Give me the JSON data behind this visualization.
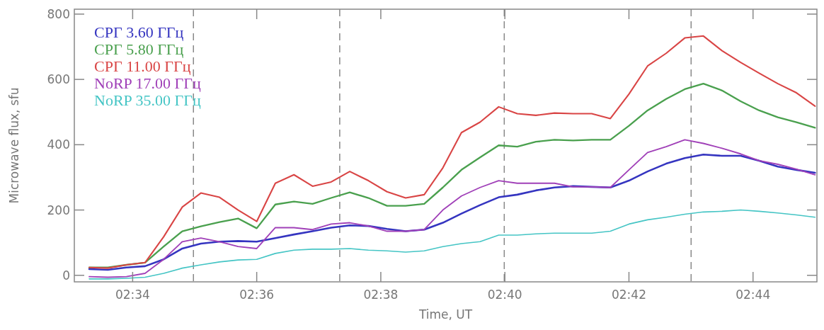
{
  "chart_data": {
    "type": "line",
    "xlabel": "Time, UT",
    "ylabel": "Microwave flux, sfu",
    "xlim": [
      2.551,
      2.7505
    ],
    "ylim": [
      -20,
      815
    ],
    "xticks": [
      {
        "value": 2.566667,
        "label": "02:34"
      },
      {
        "value": 2.6,
        "label": "02:36"
      },
      {
        "value": 2.633333,
        "label": "02:38"
      },
      {
        "value": 2.666667,
        "label": "02:40"
      },
      {
        "value": 2.7,
        "label": "02:42"
      },
      {
        "value": 2.733333,
        "label": "02:44"
      }
    ],
    "yticks": [
      0,
      200,
      400,
      600,
      800
    ],
    "grid": false,
    "legend": "top left",
    "marker": "none",
    "line_style": "solid",
    "x": [
      2.555,
      2.56,
      2.565,
      2.57,
      2.575,
      2.58,
      2.585,
      2.59,
      2.595,
      2.6,
      2.605,
      2.61,
      2.615,
      2.62,
      2.625,
      2.63,
      2.635,
      2.64,
      2.645,
      2.65,
      2.655,
      2.66,
      2.665,
      2.67,
      2.675,
      2.68,
      2.685,
      2.69,
      2.695,
      2.7,
      2.705,
      2.71,
      2.715,
      2.72,
      2.725,
      2.73,
      2.735,
      2.74,
      2.745,
      2.75
    ],
    "series": [
      {
        "name": "СРГ 3.60 ГГц",
        "color": "#3535c0",
        "values": [
          19,
          17,
          24,
          28,
          49,
          82,
          97,
          103,
          105,
          103,
          114,
          125,
          135,
          146,
          153,
          151,
          142,
          135,
          140,
          161,
          189,
          215,
          239,
          247,
          260,
          269,
          273,
          271,
          269,
          290,
          318,
          342,
          359,
          370,
          366,
          366,
          351,
          333,
          323,
          314
        ]
      },
      {
        "name": "СРГ 5.80 ГГц",
        "color": "#4aa04e",
        "values": [
          24,
          24,
          32,
          39,
          88,
          135,
          150,
          163,
          174,
          144,
          217,
          226,
          219,
          237,
          254,
          237,
          213,
          213,
          219,
          269,
          323,
          361,
          398,
          394,
          409,
          415,
          413,
          415,
          415,
          458,
          505,
          540,
          570,
          587,
          566,
          533,
          505,
          484,
          469,
          452
        ]
      },
      {
        "name": "СРГ 11.00 ГГц",
        "color": "#d94545",
        "values": [
          24,
          22,
          32,
          39,
          118,
          209,
          252,
          239,
          200,
          165,
          282,
          308,
          273,
          286,
          318,
          290,
          256,
          237,
          247,
          329,
          437,
          469,
          516,
          495,
          490,
          497,
          495,
          495,
          480,
          555,
          641,
          680,
          727,
          733,
          688,
          652,
          619,
          587,
          559,
          518
        ]
      },
      {
        "name": "NoRP 17.00 ГГц",
        "color": "#a040b8",
        "values": [
          -4,
          -6,
          -4,
          6,
          49,
          103,
          114,
          103,
          88,
          82,
          146,
          146,
          140,
          157,
          161,
          151,
          135,
          135,
          140,
          200,
          243,
          269,
          290,
          282,
          282,
          282,
          271,
          271,
          269,
          323,
          376,
          394,
          415,
          404,
          389,
          372,
          351,
          340,
          325,
          308
        ]
      },
      {
        "name": "NoRP 35.00 ГГц",
        "color": "#45c5c5",
        "values": [
          -11,
          -11,
          -9,
          -6,
          6,
          22,
          32,
          41,
          47,
          49,
          67,
          77,
          80,
          80,
          82,
          77,
          75,
          71,
          75,
          88,
          97,
          103,
          123,
          123,
          127,
          129,
          129,
          129,
          135,
          157,
          170,
          178,
          187,
          194,
          196,
          200,
          196,
          191,
          185,
          178
        ]
      }
    ],
    "ref_lines": [
      {
        "axis": "x",
        "value": 2.583,
        "line_style": "dashed",
        "color": "#888888"
      },
      {
        "axis": "x",
        "value": 2.6223,
        "line_style": "dashed",
        "color": "#888888"
      },
      {
        "axis": "x",
        "value": 2.6665,
        "line_style": "dashed",
        "color": "#888888"
      },
      {
        "axis": "x",
        "value": 2.7167,
        "line_style": "dashed",
        "color": "#888888"
      }
    ]
  }
}
